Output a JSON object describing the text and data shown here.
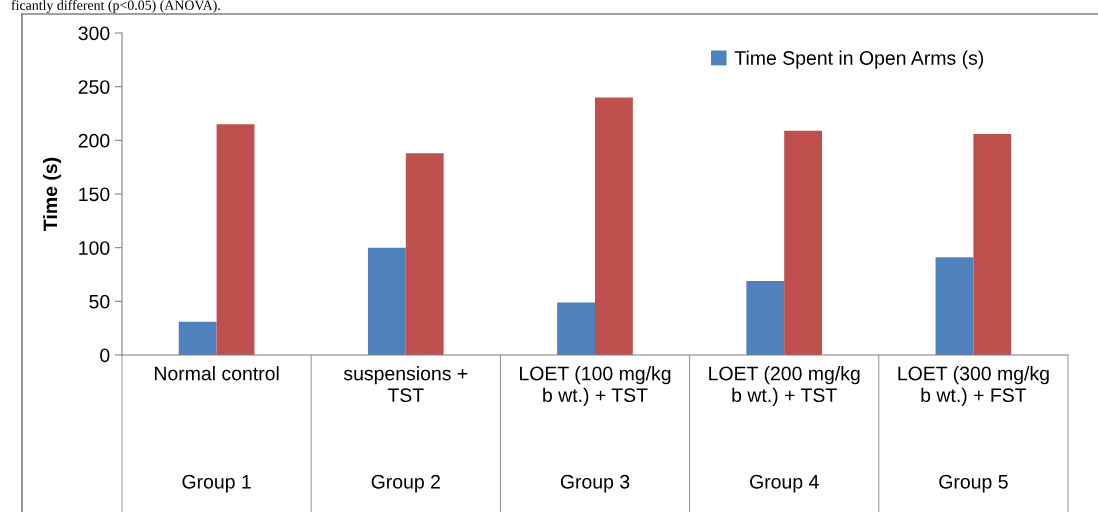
{
  "chart_data": {
    "type": "bar",
    "annotations": [
      "ficantly different (p<0.05) (ANOVA)."
    ],
    "ylabel": "Time (s)",
    "categories": [
      "Normal control\n\n\n\n\nGroup 1",
      "suspensions +\nTST\n\n\n\nGroup 2",
      "LOET (100 mg/kg\nb wt.) + TST\n\n\n\nGroup 3",
      "LOET (200 mg/kg\nb wt.) + TST\n\n\n\nGroup 4",
      "LOET (300 mg/kg\nb wt.) + FST\n\n\n\nGroup 5"
    ],
    "series": [
      {
        "name": "Time Spent in Open Arms (s)",
        "color": "#4f81bd",
        "values": [
          31,
          100,
          49,
          69,
          91
        ]
      },
      {
        "color": "#c0504d",
        "values": [
          215,
          188,
          240,
          209,
          206
        ]
      }
    ],
    "ylim": [
      0,
      300
    ],
    "yticks": [
      0,
      50,
      100,
      150,
      200,
      250,
      300
    ],
    "grid": false,
    "legend": "top right"
  }
}
